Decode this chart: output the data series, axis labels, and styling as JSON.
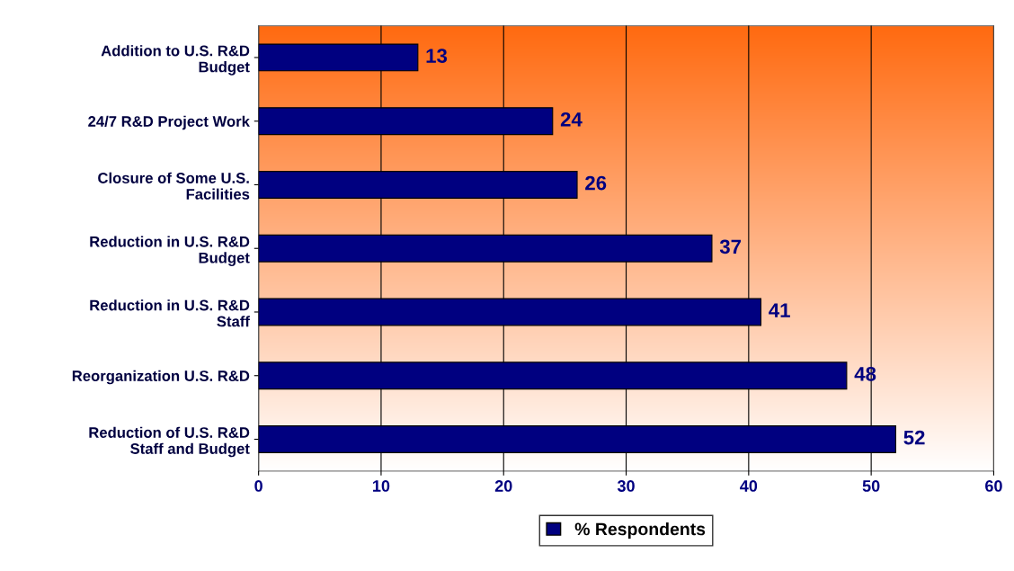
{
  "chart_data": {
    "type": "bar",
    "orientation": "horizontal",
    "categories": [
      "Addition to U.S. R&D\nBudget",
      "24/7 R&D Project Work",
      "Closure of Some U.S.\nFacilities",
      "Reduction in U.S. R&D\nBudget",
      "Reduction in U.S. R&D\nStaff",
      "Reorganization U.S. R&D",
      "Reduction of U.S. R&D\nStaff and Budget"
    ],
    "series": [
      {
        "name": "% Respondents",
        "color": "#000080",
        "values": [
          13,
          24,
          26,
          37,
          41,
          48,
          52
        ]
      }
    ],
    "xlim": [
      0,
      60
    ],
    "xticks": [
      0,
      10,
      20,
      30,
      40,
      50,
      60
    ],
    "grid": "x",
    "legend": "bottom",
    "data_labels": true
  }
}
